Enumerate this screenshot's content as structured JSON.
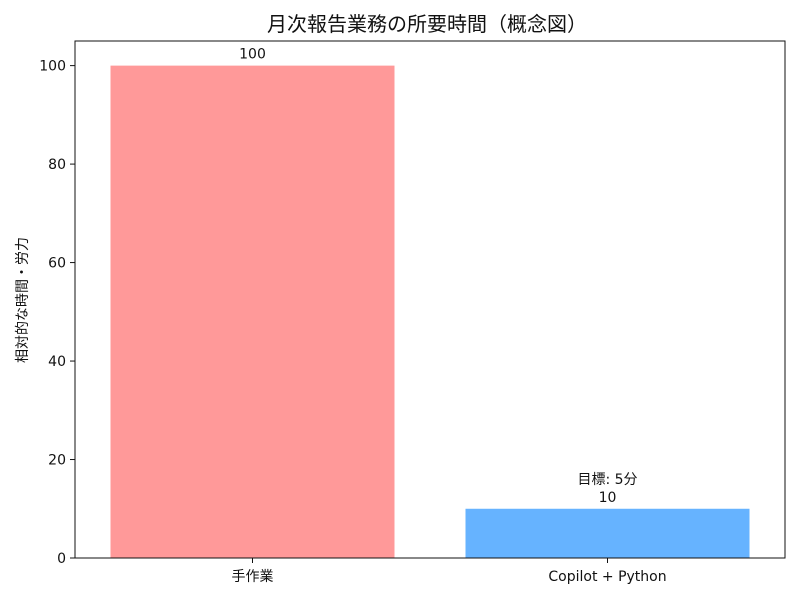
{
  "chart_data": {
    "type": "bar",
    "title": "月次報告業務の所要時間（概念図）",
    "xlabel": "",
    "ylabel": "相対的な時間・労力",
    "categories": [
      "手作業",
      "Copilot + Python"
    ],
    "values": [
      100,
      10
    ],
    "data_labels": [
      "100",
      "10"
    ],
    "colors": [
      "#ff9999",
      "#66b3ff"
    ],
    "ylim": [
      0,
      105
    ],
    "yticks": [
      0,
      20,
      40,
      60,
      80,
      100
    ],
    "annotations": [
      {
        "category_index": 1,
        "text": "目標: 5分"
      }
    ],
    "grid": false,
    "legend": "none"
  }
}
